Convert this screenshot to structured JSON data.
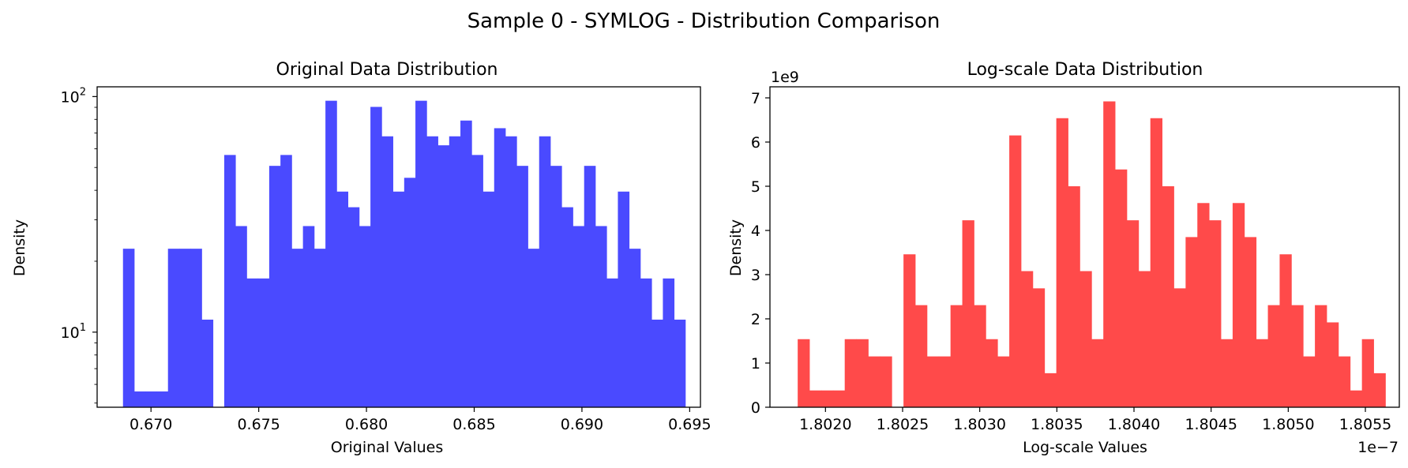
{
  "figure": {
    "suptitle": "Sample 0 - SYMLOG - Distribution Comparison"
  },
  "colors": {
    "left_bars": "#4a4aff",
    "right_bars": "#ff4a4a",
    "axes": "#000000"
  },
  "chart_data": [
    {
      "type": "bar",
      "title": "Original Data Distribution",
      "xlabel": "Original Values",
      "ylabel": "Density",
      "yscale": "log",
      "xlim": [
        0.6675,
        0.6955
      ],
      "ylim": [
        4.8,
        110
      ],
      "xticks": [
        0.67,
        0.675,
        0.68,
        0.685,
        0.69,
        0.695
      ],
      "xtick_labels": [
        "0.670",
        "0.675",
        "0.680",
        "0.685",
        "0.690",
        "0.695"
      ],
      "yticks_major": [
        10,
        100
      ],
      "ytick_labels": [
        "10",
        "10"
      ],
      "ytick_label_exponents": [
        "1",
        "2"
      ],
      "bins_start": 0.6687,
      "bin_width": 0.000522,
      "values": [
        22.6,
        5.6,
        5.6,
        5.6,
        22.6,
        22.6,
        22.6,
        11.3,
        0,
        56.5,
        28.2,
        16.9,
        16.9,
        50.8,
        56.5,
        22.6,
        28.2,
        22.6,
        96.0,
        39.5,
        33.9,
        28.2,
        90.4,
        67.8,
        39.5,
        45.2,
        96.0,
        67.8,
        62.1,
        67.8,
        79.1,
        56.5,
        39.5,
        73.4,
        67.8,
        50.8,
        22.6,
        67.8,
        50.8,
        33.9,
        28.2,
        50.8,
        28.2,
        16.9,
        39.5,
        22.6,
        16.9,
        11.3,
        16.9,
        11.3
      ],
      "grid": false,
      "legend": "none"
    },
    {
      "type": "bar",
      "title": "Log-scale Data Distribution",
      "xlabel": "Log-scale Values",
      "ylabel": "Density",
      "yscale": "linear",
      "x_offset_label": "1e−7",
      "y_offset_label": "1e9",
      "xlim": [
        1.80164,
        1.80572
      ],
      "ylim": [
        0,
        7.25
      ],
      "xticks": [
        1.802,
        1.8025,
        1.803,
        1.8035,
        1.804,
        1.8045,
        1.805,
        1.8055
      ],
      "xtick_labels": [
        "1.8020",
        "1.8025",
        "1.8030",
        "1.8035",
        "1.8040",
        "1.8045",
        "1.8050",
        "1.8055"
      ],
      "yticks": [
        0,
        1,
        2,
        3,
        4,
        5,
        6,
        7
      ],
      "ytick_labels": [
        "0",
        "1",
        "2",
        "3",
        "4",
        "5",
        "6",
        "7"
      ],
      "bins_start": 1.80182,
      "bin_width": 7.62e-05,
      "values": [
        1.54,
        0.38,
        0.38,
        0.38,
        1.54,
        1.54,
        1.15,
        1.15,
        0,
        3.46,
        2.31,
        1.15,
        1.15,
        2.31,
        4.23,
        2.31,
        1.54,
        1.15,
        6.15,
        3.08,
        2.69,
        0.77,
        6.54,
        5.0,
        3.08,
        1.54,
        6.92,
        5.38,
        4.23,
        3.08,
        6.54,
        5.0,
        2.69,
        3.85,
        4.62,
        4.23,
        1.54,
        4.62,
        3.85,
        1.54,
        2.31,
        3.46,
        2.31,
        1.15,
        2.31,
        1.92,
        1.15,
        0.38,
        1.54,
        0.77
      ],
      "grid": false,
      "legend": "none"
    }
  ]
}
